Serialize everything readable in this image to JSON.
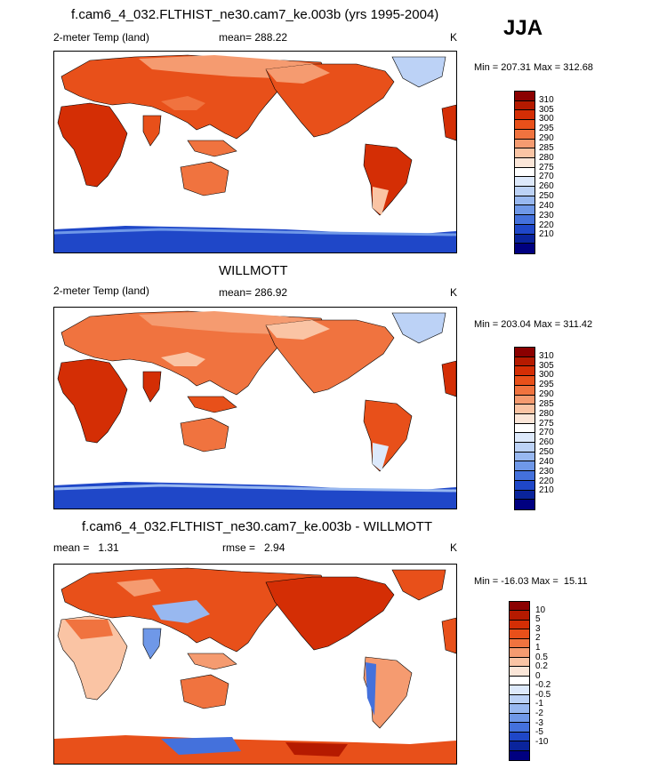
{
  "season": "JJA",
  "panels": [
    {
      "title": "f.cam6_4_032.FLTHIST_ne30.cam7_ke.003b (yrs 1995-2004)",
      "variable": "2-meter Temp (land)",
      "mean_text": "mean= 288.22",
      "units": "K",
      "minmax": "Min = 207.31 Max = 312.68",
      "palette": "abs",
      "colorbar_levels": [
        "310",
        "305",
        "300",
        "295",
        "290",
        "285",
        "280",
        "275",
        "270",
        "260",
        "250",
        "240",
        "230",
        "220",
        "210"
      ]
    },
    {
      "title": "WILLMOTT",
      "variable": "2-meter Temp (land)",
      "mean_text": "mean= 286.92",
      "units": "K",
      "minmax": "Min = 203.04 Max = 311.42",
      "palette": "abs",
      "colorbar_levels": [
        "310",
        "305",
        "300",
        "295",
        "290",
        "285",
        "280",
        "275",
        "270",
        "260",
        "250",
        "240",
        "230",
        "220",
        "210"
      ]
    },
    {
      "title": "f.cam6_4_032.FLTHIST_ne30.cam7_ke.003b - WILLMOTT",
      "mean_text": "mean =   1.31",
      "rmse_text": "rmse =   2.94",
      "units": "K",
      "minmax": "Min = -16.03 Max =  15.11",
      "palette": "diff",
      "colorbar_levels": [
        "10",
        "5",
        "3",
        "2",
        "1",
        "0.5",
        "0.2",
        "0",
        "-0.2",
        "-0.5",
        "-1",
        "-2",
        "-3",
        "-5",
        "-10"
      ]
    }
  ],
  "colors": {
    "abs": [
      "#8b0000",
      "#b51a00",
      "#d42e05",
      "#e8501a",
      "#f0733f",
      "#f59b70",
      "#fac4a4",
      "#fbe6d8",
      "#ffffff",
      "#dde9fb",
      "#bcd2f6",
      "#98b8f0",
      "#6f98e8",
      "#4471dc",
      "#1f47c8",
      "#0a249c",
      "#000080"
    ],
    "diff": [
      "#8b0000",
      "#b51a00",
      "#d42e05",
      "#e8501a",
      "#f0733f",
      "#f59b70",
      "#fac4a4",
      "#fbe6d8",
      "#ffffff",
      "#dde9fb",
      "#bcd2f6",
      "#98b8f0",
      "#6f98e8",
      "#4471dc",
      "#1f47c8",
      "#0a249c",
      "#000080"
    ]
  }
}
